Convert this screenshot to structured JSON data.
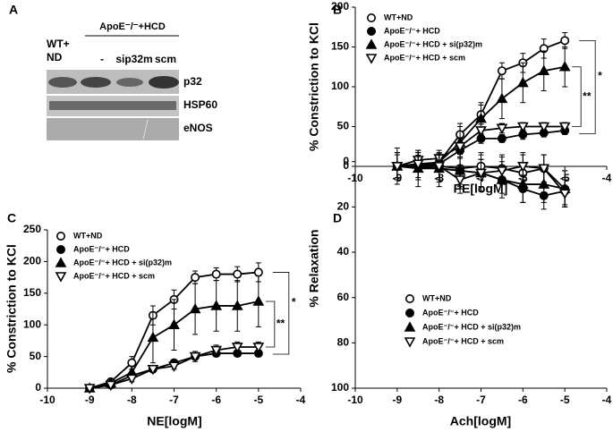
{
  "blot": {
    "panel_label": "A",
    "lane_header": [
      "WT+",
      "ND"
    ],
    "group_label": "ApoE⁻/⁻+HCD",
    "lanes": [
      "-",
      "sip32m",
      "scm"
    ],
    "rows": [
      "p32",
      "HSP60",
      "eNOS"
    ]
  },
  "chart_data": [
    {
      "type": "line",
      "panel_label": "B",
      "y_label": "% Constriction to KCl",
      "x_label": "PE[logM]",
      "x": [
        -9,
        -8.5,
        -8,
        -7.5,
        -7,
        -6.5,
        -6,
        -5.5,
        -5
      ],
      "series": [
        {
          "name": "WT+ND",
          "marker": "open-circle",
          "color": "#000000",
          "values": [
            0,
            2,
            5,
            40,
            65,
            120,
            130,
            148,
            158
          ],
          "errors": [
            3,
            4,
            5,
            14,
            12,
            10,
            12,
            12,
            10
          ]
        },
        {
          "name": "ApoE⁻/⁻+ HCD",
          "marker": "filled-circle",
          "color": "#000000",
          "values": [
            0,
            2,
            3,
            20,
            35,
            35,
            40,
            42,
            45
          ],
          "errors": [
            2,
            3,
            4,
            8,
            6,
            5,
            6,
            5,
            5
          ]
        },
        {
          "name": "ApoE⁻/⁻+ HCD + si(p32)m",
          "marker": "filled-triangle",
          "color": "#000000",
          "values": [
            0,
            3,
            5,
            30,
            60,
            85,
            105,
            120,
            125
          ],
          "errors": [
            3,
            5,
            6,
            20,
            20,
            25,
            25,
            25,
            25
          ]
        },
        {
          "name": "ApoE⁻/⁻+ HCD + scm",
          "marker": "open-triangle-down",
          "color": "#000000",
          "values": [
            0,
            8,
            10,
            25,
            45,
            48,
            50,
            50,
            50
          ],
          "errors": [
            2,
            6,
            6,
            10,
            8,
            6,
            5,
            5,
            5
          ]
        }
      ],
      "annotations": [
        "**",
        "*"
      ],
      "xlim": [
        -10,
        -4
      ],
      "xticks": [
        -10,
        -9,
        -8,
        -7,
        -6,
        -5,
        -4
      ],
      "ylim": [
        0,
        200
      ],
      "yticks": [
        0,
        50,
        100,
        150,
        200
      ]
    },
    {
      "type": "line",
      "panel_label": "C",
      "y_label": "% Constriction to KCl",
      "x_label": "NE[logM]",
      "x": [
        -9,
        -8.5,
        -8,
        -7.5,
        -7,
        -6.5,
        -6,
        -5.5,
        -5
      ],
      "series": [
        {
          "name": "WT+ND",
          "marker": "open-circle",
          "color": "#000000",
          "values": [
            0,
            10,
            40,
            115,
            140,
            175,
            180,
            180,
            183
          ],
          "errors": [
            3,
            5,
            10,
            15,
            15,
            10,
            10,
            12,
            15
          ]
        },
        {
          "name": "ApoE⁻/⁻+ HCD",
          "marker": "filled-circle",
          "color": "#000000",
          "values": [
            0,
            5,
            20,
            30,
            40,
            50,
            55,
            55,
            55
          ],
          "errors": [
            2,
            3,
            5,
            5,
            5,
            5,
            5,
            5,
            5
          ]
        },
        {
          "name": "ApoE⁻/⁻+ HCD + si(p32)m",
          "marker": "filled-triangle",
          "color": "#000000",
          "values": [
            0,
            8,
            25,
            80,
            100,
            125,
            130,
            130,
            137
          ],
          "errors": [
            3,
            5,
            10,
            40,
            40,
            40,
            40,
            40,
            40
          ]
        },
        {
          "name": "ApoE⁻/⁻+ HCD + scm",
          "marker": "open-triangle-down",
          "color": "#000000",
          "values": [
            0,
            5,
            15,
            30,
            35,
            50,
            60,
            65,
            65
          ],
          "errors": [
            2,
            3,
            5,
            5,
            5,
            8,
            8,
            8,
            8
          ]
        }
      ],
      "annotations": [
        "**",
        "*"
      ],
      "xlim": [
        -10,
        -4
      ],
      "xticks": [
        -10,
        -9,
        -8,
        -7,
        -6,
        -5,
        -4
      ],
      "ylim": [
        0,
        250
      ],
      "yticks": [
        0,
        50,
        100,
        150,
        200,
        250
      ]
    },
    {
      "type": "line",
      "panel_label": "D",
      "y_label": "% Relaxation",
      "x_label": "Ach[logM]",
      "x": [
        -9,
        -8.5,
        -8,
        -7.5,
        -7,
        -6.5,
        -6,
        -5.5,
        -5
      ],
      "series": [
        {
          "name": "WT+ND",
          "marker": "open-circle",
          "color": "#000000",
          "values": [
            2,
            2,
            2,
            3,
            2,
            3,
            5,
            3,
            12
          ],
          "errors": [
            6,
            6,
            6,
            8,
            6,
            6,
            8,
            6,
            8
          ]
        },
        {
          "name": "ApoE⁻/⁻+ HCD",
          "marker": "filled-circle",
          "color": "#000000",
          "values": [
            2,
            2,
            3,
            4,
            5,
            8,
            12,
            15,
            13
          ],
          "errors": [
            6,
            6,
            6,
            6,
            6,
            6,
            6,
            6,
            6
          ]
        },
        {
          "name": "ApoE⁻/⁻+ HCD + si(p32)m",
          "marker": "filled-triangle",
          "color": "#000000",
          "values": [
            2,
            3,
            3,
            4,
            5,
            8,
            10,
            10,
            12
          ],
          "errors": [
            8,
            8,
            8,
            8,
            8,
            8,
            8,
            8,
            8
          ]
        },
        {
          "name": "ApoE⁻/⁻+ HCD + scm",
          "marker": "open-triangle-down",
          "color": "#000000",
          "values": [
            2,
            1,
            2,
            8,
            5,
            4,
            2,
            3,
            14
          ],
          "errors": [
            5,
            6,
            5,
            6,
            6,
            6,
            6,
            6,
            6
          ]
        }
      ],
      "xlim": [
        -10,
        -4
      ],
      "xticks": [
        -10,
        -9,
        -8,
        -7,
        -6,
        -5,
        -4
      ],
      "ylim": [
        100,
        -7
      ],
      "yticks": [
        0,
        20,
        40,
        60,
        80,
        100
      ]
    }
  ]
}
